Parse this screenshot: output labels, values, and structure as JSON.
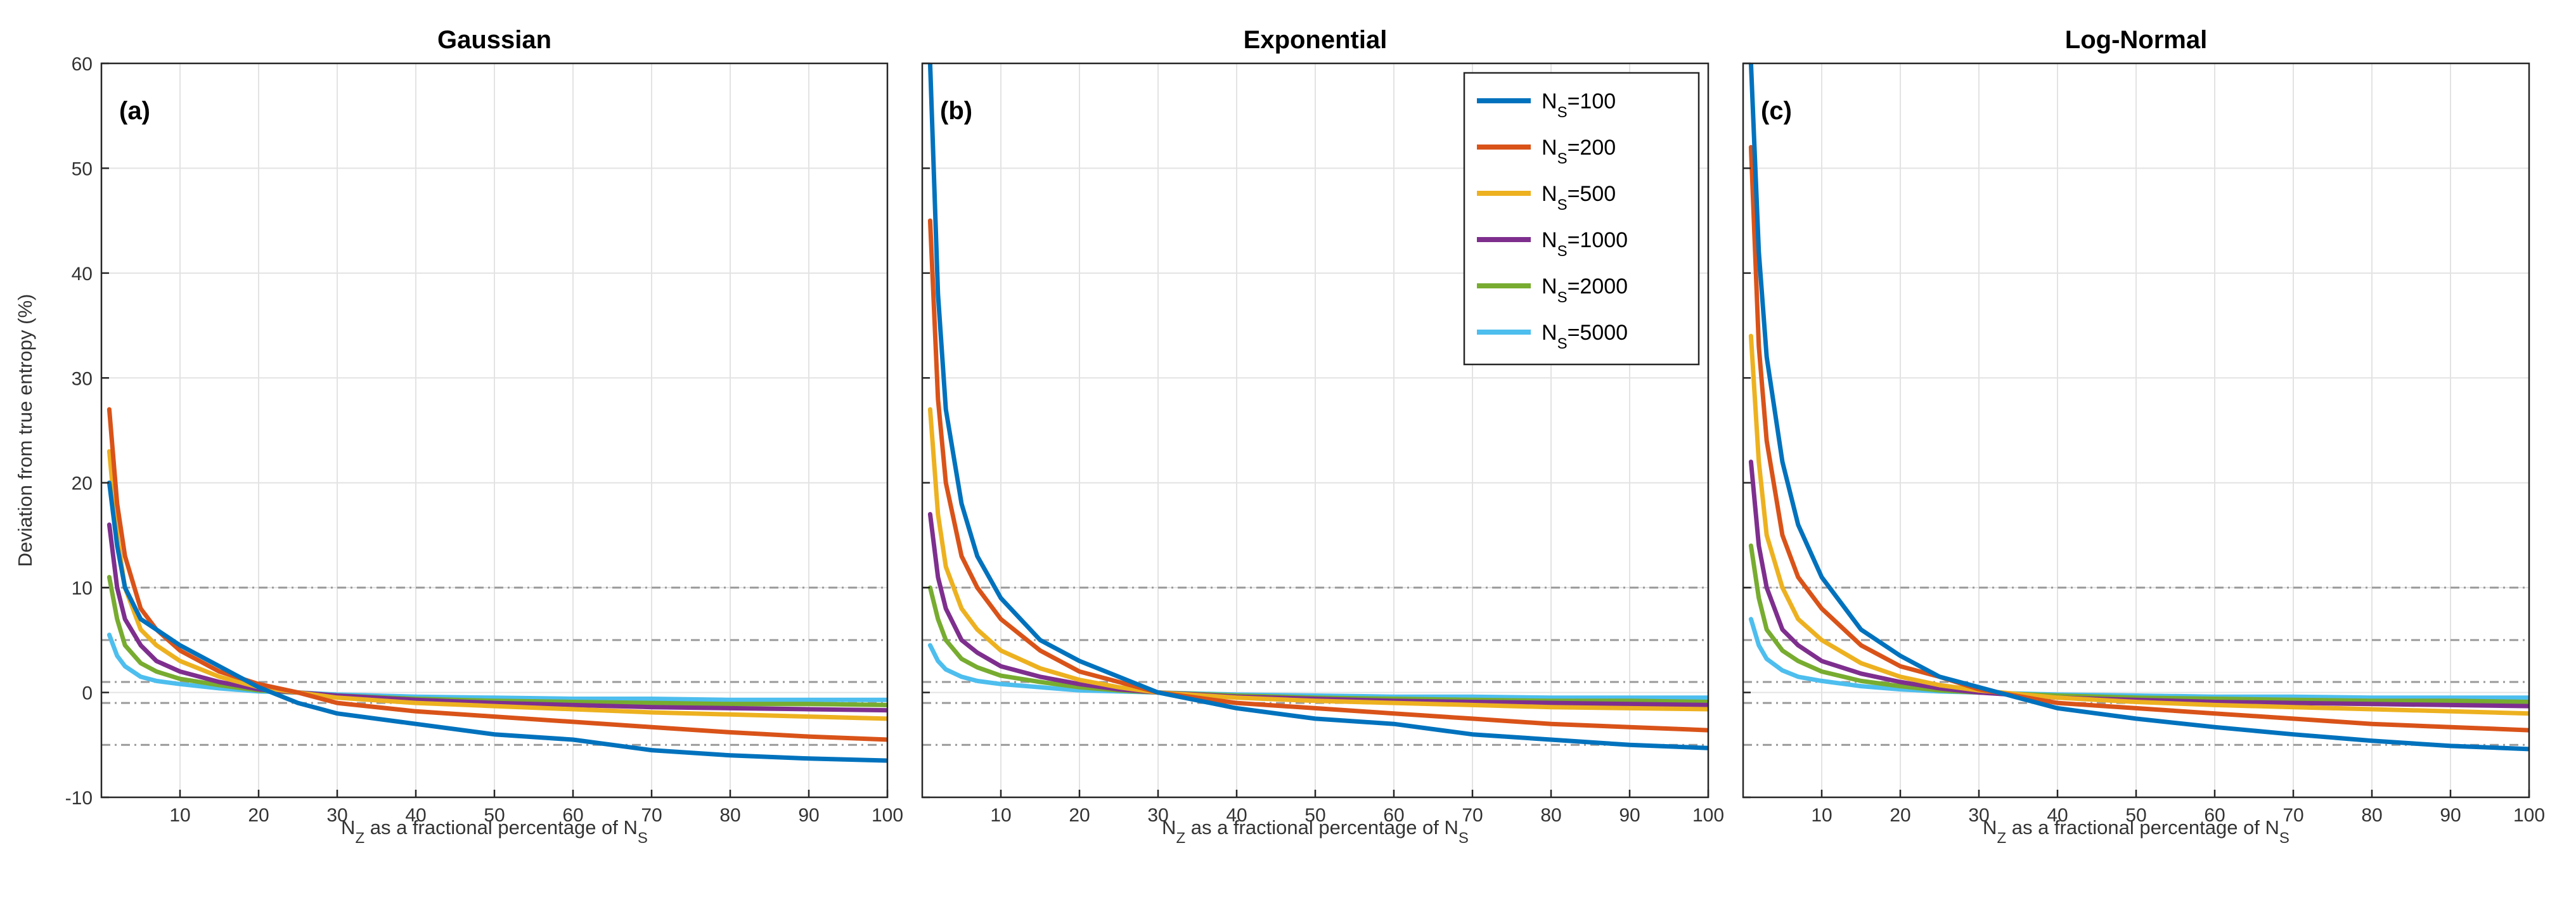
{
  "chart_data": [
    {
      "type": "line",
      "title": "Gaussian",
      "panel_label": "(a)",
      "xlabel": "N_Z as a fractional percentage of N_S",
      "ylabel": "Deviation from true entropy (%)",
      "xlim": [
        0,
        100
      ],
      "ylim": [
        -10,
        60
      ],
      "xticks": [
        10,
        20,
        30,
        40,
        50,
        60,
        70,
        80,
        90,
        100
      ],
      "yticks": [
        -10,
        0,
        10,
        20,
        30,
        40,
        50,
        60
      ],
      "grid": true,
      "reference_lines": [
        10,
        5,
        1,
        -1,
        -5
      ],
      "series": [
        {
          "name": "N_S=100",
          "color": "#0072BD",
          "x": [
            1,
            2,
            3,
            5,
            7,
            10,
            15,
            20,
            25,
            30,
            40,
            50,
            60,
            70,
            80,
            90,
            100
          ],
          "values": [
            20,
            14,
            10,
            7,
            6,
            4.5,
            2.5,
            0.5,
            -1,
            -2,
            -3,
            -4,
            -4.5,
            -5.5,
            -6,
            -6.3,
            -6.5
          ]
        },
        {
          "name": "N_S=200",
          "color": "#D95319",
          "x": [
            1,
            2,
            3,
            5,
            7,
            10,
            15,
            20,
            25,
            30,
            40,
            50,
            60,
            70,
            80,
            90,
            100
          ],
          "values": [
            27,
            18,
            13,
            8,
            6,
            4,
            2,
            0.8,
            0,
            -1,
            -1.8,
            -2.3,
            -2.8,
            -3.3,
            -3.8,
            -4.2,
            -4.5
          ]
        },
        {
          "name": "N_S=500",
          "color": "#EDB120",
          "x": [
            1,
            2,
            3,
            5,
            7,
            10,
            15,
            20,
            25,
            30,
            40,
            50,
            60,
            70,
            80,
            90,
            100
          ],
          "values": [
            23,
            15,
            10,
            6,
            4.5,
            3,
            1.5,
            0.5,
            0,
            -0.5,
            -1,
            -1.3,
            -1.6,
            -1.9,
            -2.1,
            -2.3,
            -2.5
          ]
        },
        {
          "name": "N_S=1000",
          "color": "#7E2F8E",
          "x": [
            1,
            2,
            3,
            5,
            7,
            10,
            15,
            20,
            25,
            30,
            40,
            50,
            60,
            70,
            80,
            90,
            100
          ],
          "values": [
            16,
            10,
            7,
            4.5,
            3,
            2,
            1,
            0.3,
            0,
            -0.3,
            -0.7,
            -1,
            -1.2,
            -1.4,
            -1.5,
            -1.6,
            -1.7
          ]
        },
        {
          "name": "N_S=2000",
          "color": "#77AC30",
          "x": [
            1,
            2,
            3,
            5,
            7,
            10,
            15,
            20,
            25,
            30,
            40,
            50,
            60,
            70,
            80,
            90,
            100
          ],
          "values": [
            11,
            7,
            4.5,
            2.8,
            2,
            1.3,
            0.7,
            0.2,
            0,
            -0.3,
            -0.6,
            -0.8,
            -0.9,
            -1,
            -1.1,
            -1.1,
            -1.2
          ]
        },
        {
          "name": "N_S=5000",
          "color": "#4DBEEE",
          "x": [
            1,
            2,
            3,
            5,
            7,
            10,
            15,
            20,
            25,
            30,
            40,
            50,
            60,
            70,
            80,
            90,
            100
          ],
          "values": [
            5.5,
            3.5,
            2.5,
            1.5,
            1.1,
            0.8,
            0.4,
            0.1,
            0,
            -0.2,
            -0.4,
            -0.5,
            -0.6,
            -0.6,
            -0.7,
            -0.7,
            -0.7
          ]
        }
      ]
    },
    {
      "type": "line",
      "title": "Exponential",
      "panel_label": "(b)",
      "xlabel": "N_Z as a fractional percentage of N_S",
      "xlim": [
        0,
        100
      ],
      "ylim": [
        -10,
        60
      ],
      "xticks": [
        10,
        20,
        30,
        40,
        50,
        60,
        70,
        80,
        90,
        100
      ],
      "yticks": [
        -10,
        0,
        10,
        20,
        30,
        40,
        50,
        60
      ],
      "grid": true,
      "reference_lines": [
        10,
        5,
        1,
        -1,
        -5
      ],
      "legend_position": "top-right",
      "series": [
        {
          "name": "N_S=100",
          "color": "#0072BD",
          "x": [
            1,
            2,
            3,
            5,
            7,
            10,
            15,
            20,
            25,
            30,
            40,
            50,
            60,
            70,
            80,
            90,
            100
          ],
          "values": [
            60,
            38,
            27,
            18,
            13,
            9,
            5,
            3,
            1.5,
            0,
            -1.5,
            -2.5,
            -3,
            -4,
            -4.5,
            -5,
            -5.3
          ]
        },
        {
          "name": "N_S=200",
          "color": "#D95319",
          "x": [
            1,
            2,
            3,
            5,
            7,
            10,
            15,
            20,
            25,
            30,
            40,
            50,
            60,
            70,
            80,
            90,
            100
          ],
          "values": [
            45,
            28,
            20,
            13,
            10,
            7,
            4,
            2,
            1,
            0,
            -1,
            -1.5,
            -2,
            -2.5,
            -3,
            -3.3,
            -3.6
          ]
        },
        {
          "name": "N_S=500",
          "color": "#EDB120",
          "x": [
            1,
            2,
            3,
            5,
            7,
            10,
            15,
            20,
            25,
            30,
            40,
            50,
            60,
            70,
            80,
            90,
            100
          ],
          "values": [
            27,
            17,
            12,
            8,
            6,
            4,
            2.3,
            1.2,
            0.5,
            0,
            -0.5,
            -0.8,
            -1,
            -1.2,
            -1.4,
            -1.5,
            -1.6
          ]
        },
        {
          "name": "N_S=1000",
          "color": "#7E2F8E",
          "x": [
            1,
            2,
            3,
            5,
            7,
            10,
            15,
            20,
            25,
            30,
            40,
            50,
            60,
            70,
            80,
            90,
            100
          ],
          "values": [
            17,
            11,
            8,
            5,
            3.8,
            2.5,
            1.5,
            0.8,
            0.3,
            0,
            -0.4,
            -0.6,
            -0.8,
            -0.9,
            -1,
            -1.1,
            -1.2
          ]
        },
        {
          "name": "N_S=2000",
          "color": "#77AC30",
          "x": [
            1,
            2,
            3,
            5,
            7,
            10,
            15,
            20,
            25,
            30,
            40,
            50,
            60,
            70,
            80,
            90,
            100
          ],
          "values": [
            10,
            7,
            5,
            3.2,
            2.4,
            1.6,
            1,
            0.5,
            0.2,
            0,
            -0.3,
            -0.5,
            -0.6,
            -0.7,
            -0.8,
            -0.8,
            -0.9
          ]
        },
        {
          "name": "N_S=5000",
          "color": "#4DBEEE",
          "x": [
            1,
            2,
            3,
            5,
            7,
            10,
            15,
            20,
            25,
            30,
            40,
            50,
            60,
            70,
            80,
            90,
            100
          ],
          "values": [
            4.5,
            3,
            2.2,
            1.5,
            1.1,
            0.8,
            0.5,
            0.2,
            0.1,
            0,
            -0.2,
            -0.3,
            -0.4,
            -0.4,
            -0.5,
            -0.5,
            -0.5
          ]
        }
      ]
    },
    {
      "type": "line",
      "title": "Log-Normal",
      "panel_label": "(c)",
      "xlabel": "N_Z as a fractional percentage of N_S",
      "xlim": [
        0,
        100
      ],
      "ylim": [
        -10,
        60
      ],
      "xticks": [
        10,
        20,
        30,
        40,
        50,
        60,
        70,
        80,
        90,
        100
      ],
      "yticks": [
        -10,
        0,
        10,
        20,
        30,
        40,
        50,
        60
      ],
      "grid": true,
      "reference_lines": [
        10,
        5,
        1,
        -1,
        -5
      ],
      "series": [
        {
          "name": "N_S=100",
          "color": "#0072BD",
          "x": [
            1,
            2,
            3,
            5,
            7,
            10,
            15,
            20,
            25,
            30,
            40,
            50,
            60,
            70,
            80,
            90,
            100
          ],
          "values": [
            60,
            42,
            32,
            22,
            16,
            11,
            6,
            3.5,
            1.5,
            0.5,
            -1.5,
            -2.5,
            -3.3,
            -4,
            -4.6,
            -5.1,
            -5.4
          ]
        },
        {
          "name": "N_S=200",
          "color": "#D95319",
          "x": [
            1,
            2,
            3,
            5,
            7,
            10,
            15,
            20,
            25,
            30,
            40,
            50,
            60,
            70,
            80,
            90,
            100
          ],
          "values": [
            52,
            33,
            24,
            15,
            11,
            8,
            4.5,
            2.5,
            1.5,
            0.3,
            -1,
            -1.5,
            -2,
            -2.5,
            -3,
            -3.3,
            -3.6
          ]
        },
        {
          "name": "N_S=500",
          "color": "#EDB120",
          "x": [
            1,
            2,
            3,
            5,
            7,
            10,
            15,
            20,
            25,
            30,
            40,
            50,
            60,
            70,
            80,
            90,
            100
          ],
          "values": [
            34,
            22,
            15,
            10,
            7,
            5,
            2.8,
            1.5,
            0.7,
            0.2,
            -0.5,
            -0.9,
            -1.2,
            -1.4,
            -1.6,
            -1.8,
            -2
          ]
        },
        {
          "name": "N_S=1000",
          "color": "#7E2F8E",
          "x": [
            1,
            2,
            3,
            5,
            7,
            10,
            15,
            20,
            25,
            30,
            40,
            50,
            60,
            70,
            80,
            90,
            100
          ],
          "values": [
            22,
            14,
            10,
            6,
            4.5,
            3,
            1.8,
            1,
            0.4,
            0,
            -0.5,
            -0.7,
            -0.9,
            -1,
            -1.1,
            -1.2,
            -1.3
          ]
        },
        {
          "name": "N_S=2000",
          "color": "#77AC30",
          "x": [
            1,
            2,
            3,
            5,
            7,
            10,
            15,
            20,
            25,
            30,
            40,
            50,
            60,
            70,
            80,
            90,
            100
          ],
          "values": [
            14,
            9,
            6,
            4,
            3,
            2,
            1.1,
            0.6,
            0.2,
            0,
            -0.3,
            -0.5,
            -0.6,
            -0.7,
            -0.8,
            -0.8,
            -0.9
          ]
        },
        {
          "name": "N_S=5000",
          "color": "#4DBEEE",
          "x": [
            1,
            2,
            3,
            5,
            7,
            10,
            15,
            20,
            25,
            30,
            40,
            50,
            60,
            70,
            80,
            90,
            100
          ],
          "values": [
            7,
            4.5,
            3.2,
            2.1,
            1.5,
            1.1,
            0.6,
            0.3,
            0.1,
            0,
            -0.2,
            -0.3,
            -0.4,
            -0.4,
            -0.5,
            -0.5,
            -0.5
          ]
        }
      ]
    }
  ]
}
